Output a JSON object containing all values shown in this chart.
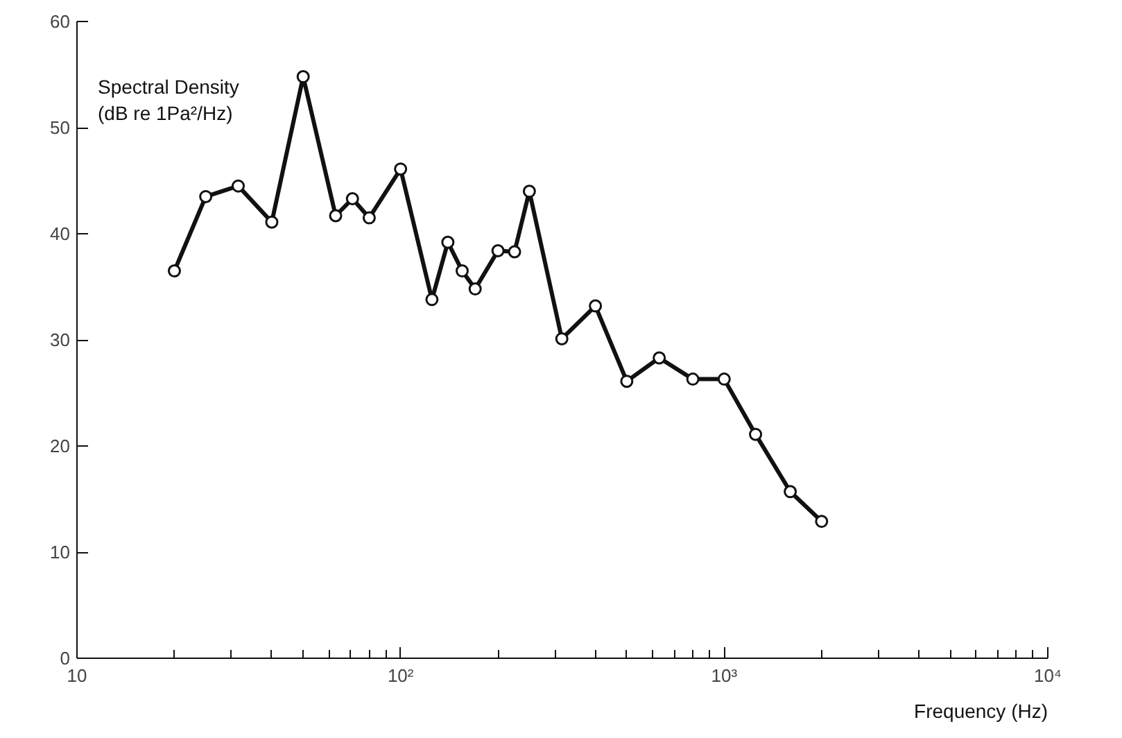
{
  "chart_data": {
    "type": "line",
    "xlabel": "Frequency (Hz)",
    "ylabel": "Spectral Density\n(dB re 1Pa²/Hz)",
    "x": [
      20,
      25,
      31.5,
      40,
      50,
      63,
      71,
      80,
      100,
      125,
      140,
      155,
      170,
      200,
      225,
      250,
      315,
      400,
      500,
      630,
      800,
      1000,
      1250,
      1600,
      2000
    ],
    "series": [
      {
        "color": "#111111",
        "values": [
          36.5,
          43.5,
          44.5,
          41.1,
          54.8,
          41.7,
          43.3,
          41.5,
          46.1,
          33.8,
          39.2,
          36.5,
          34.8,
          38.4,
          38.3,
          44.0,
          30.1,
          33.2,
          26.1,
          28.3,
          26.3,
          26.3,
          21.1,
          15.7,
          12.9
        ]
      }
    ],
    "log": "x",
    "xlim": [
      10,
      10000
    ],
    "ylim": [
      0,
      60
    ],
    "xticks": [
      10,
      {
        "value": 100,
        "label": "10²"
      },
      {
        "value": 1000,
        "label": "10³"
      },
      {
        "value": 10000,
        "label": "10⁴"
      }
    ],
    "yticks": [
      0,
      10,
      20,
      30,
      40,
      50,
      60
    ],
    "grid": false,
    "marker": "circle",
    "line_style": "solid"
  }
}
